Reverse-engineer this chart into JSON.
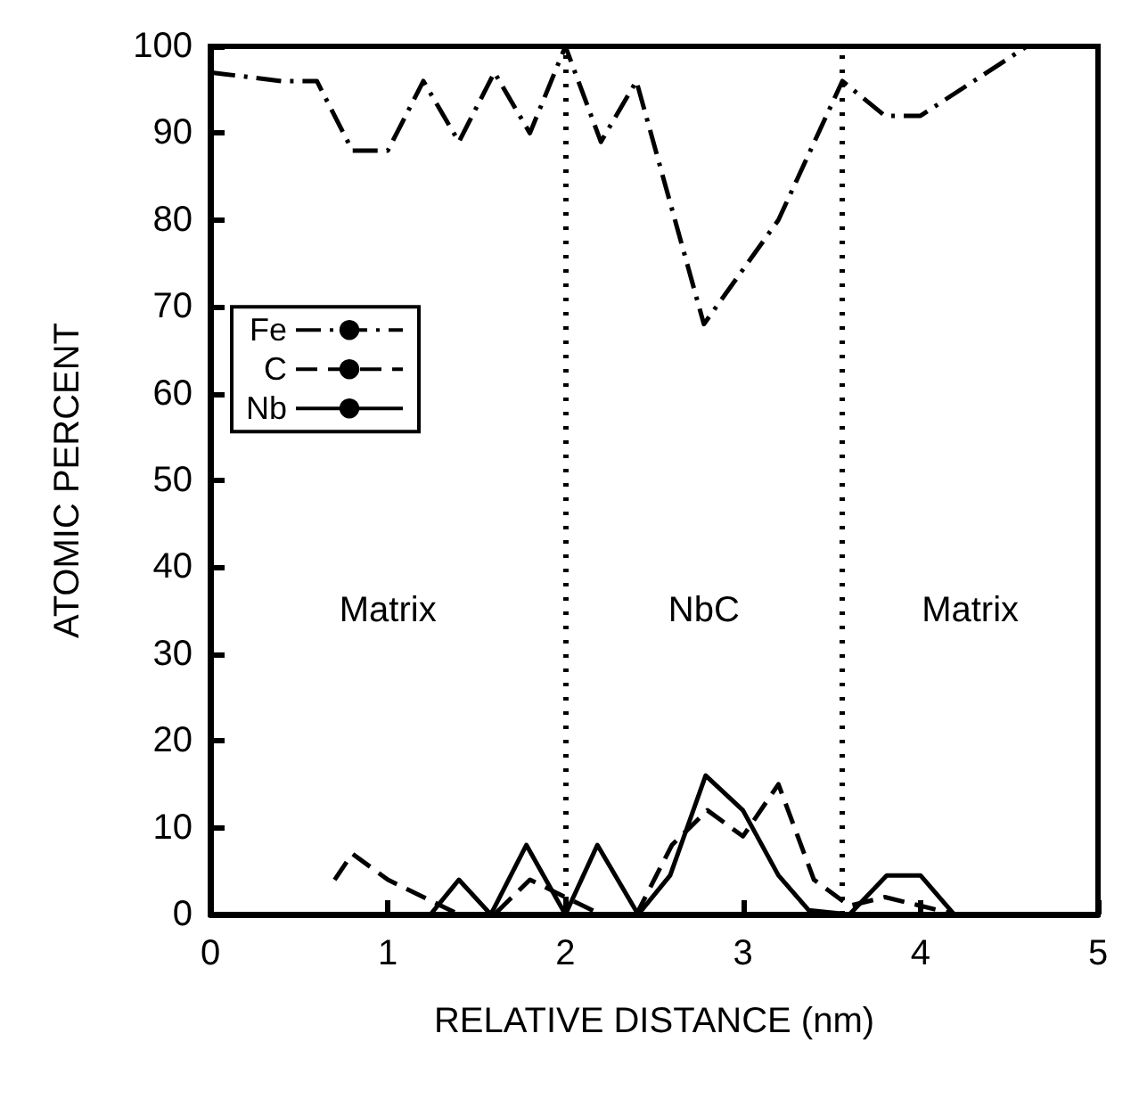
{
  "chart_data": {
    "type": "line",
    "xlabel": "RELATIVE DISTANCE (nm)",
    "ylabel": "ATOMIC PERCENT",
    "xlim": [
      0,
      5
    ],
    "ylim": [
      0,
      100
    ],
    "xticks": [
      0,
      1,
      2,
      3,
      4,
      5
    ],
    "yticks": [
      0,
      10,
      20,
      30,
      40,
      50,
      60,
      70,
      80,
      90,
      100
    ],
    "grid": false,
    "legend": "left",
    "marker": "none",
    "series": [
      {
        "name": "Fe",
        "color": "#000000",
        "line_style": "dashdot",
        "x": [
          0,
          0.4,
          0.6,
          0.8,
          1.0,
          1.2,
          1.4,
          1.6,
          1.8,
          2.0,
          2.2,
          2.4,
          2.78,
          3.2,
          3.56,
          3.8,
          4.0,
          4.6
        ],
        "values": [
          97,
          96,
          96,
          88,
          88,
          96,
          89,
          97,
          90,
          100,
          89,
          96,
          68,
          80,
          96,
          92,
          92,
          100
        ]
      },
      {
        "name": "C",
        "color": "#000000",
        "line_style": "dashed",
        "x": [
          0.7,
          0.8,
          1.0,
          1.2,
          1.4,
          1.6,
          1.8,
          2.0,
          2.2,
          2.4,
          2.6,
          2.8,
          3.0,
          3.2,
          3.4,
          3.6,
          3.8,
          4.0,
          4.2
        ],
        "values": [
          4,
          7,
          4,
          2,
          0,
          0,
          4,
          2,
          0,
          0,
          8,
          12,
          9,
          15,
          4,
          1,
          2,
          1,
          0
        ]
      },
      {
        "name": "Nb",
        "color": "#000000",
        "line_style": "solid",
        "x": [
          1.24,
          1.4,
          1.58,
          1.78,
          2.0,
          2.18,
          2.41,
          2.59,
          2.79,
          3.0,
          3.2,
          3.37,
          3.6,
          3.81,
          4.0,
          4.19
        ],
        "values": [
          0,
          4,
          0,
          8,
          0,
          8,
          0,
          4.5,
          16,
          12,
          4.5,
          0.5,
          0,
          4.5,
          4.5,
          0
        ]
      }
    ],
    "ref_lines": [
      {
        "axis": "x",
        "value": 2.0,
        "line_style": "dotted",
        "color": "#000000"
      },
      {
        "axis": "x",
        "value": 3.56,
        "line_style": "dotted",
        "color": "#000000"
      }
    ],
    "annotations": [
      "Matrix",
      "NbC",
      "Matrix"
    ]
  }
}
